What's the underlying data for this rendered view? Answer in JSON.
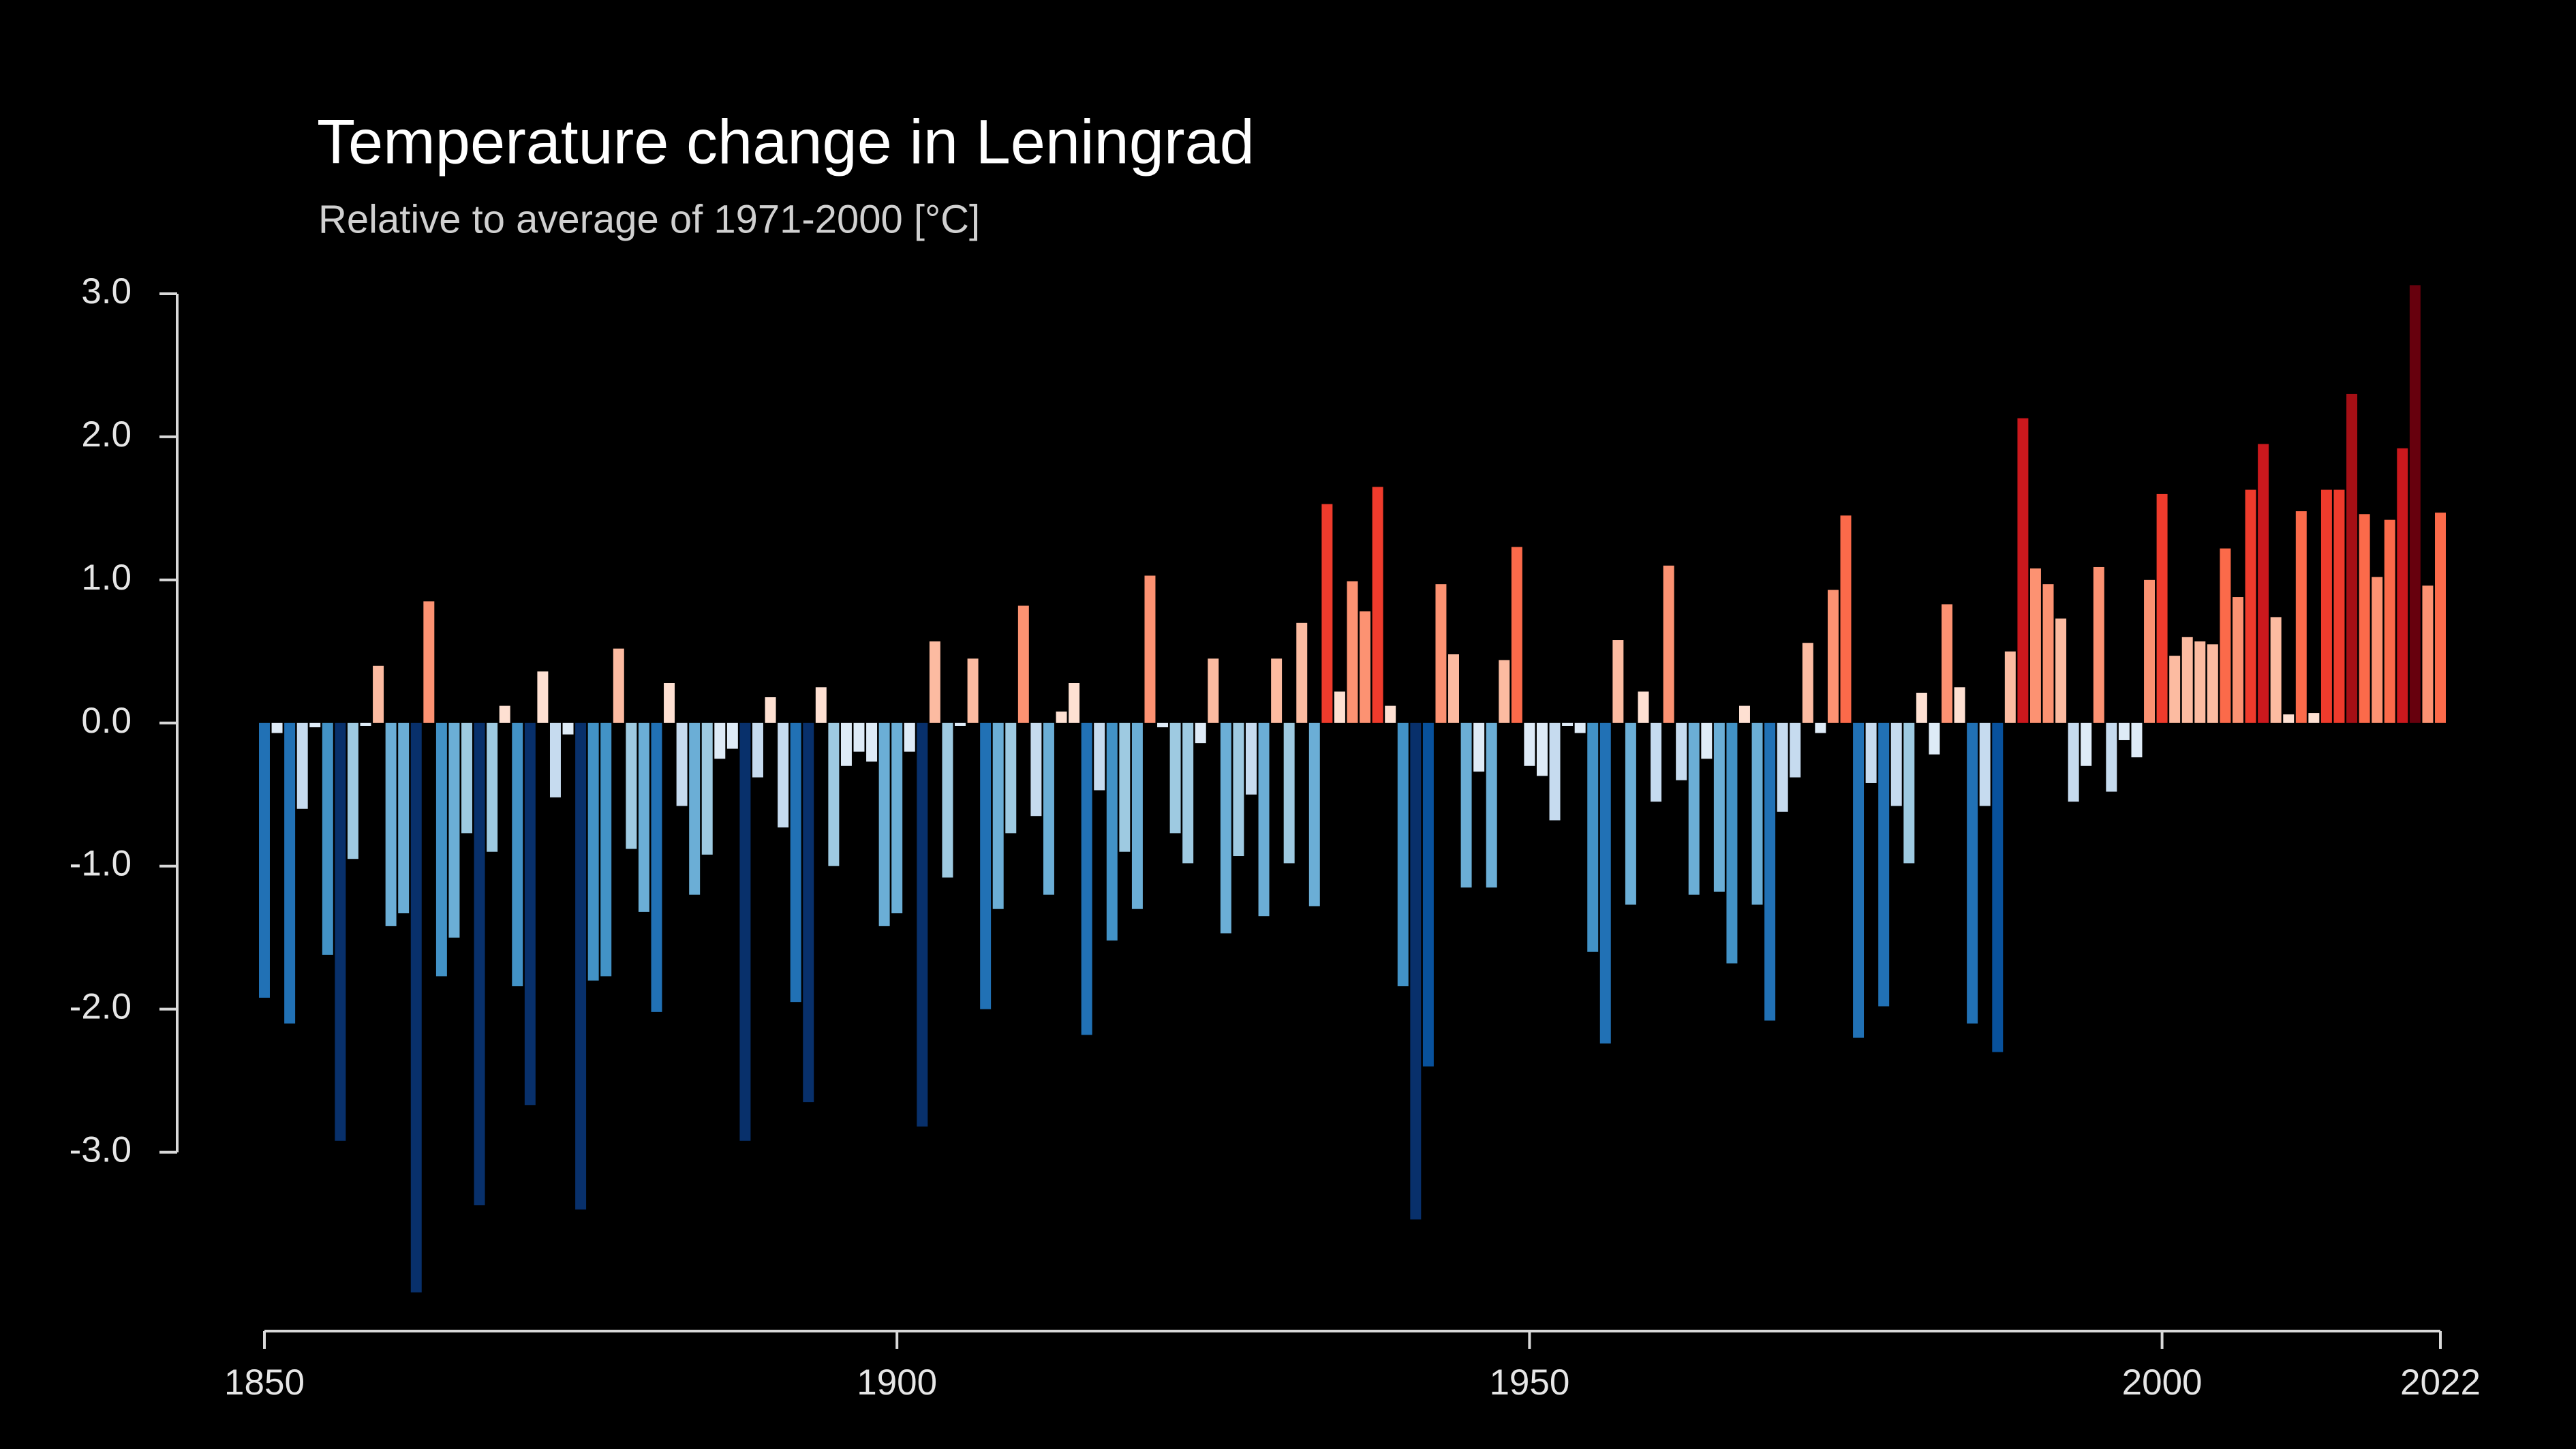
{
  "chart_data": {
    "type": "bar",
    "title": "Temperature change in Leningrad",
    "subtitle": "Relative to average of 1971-2000  [°C]",
    "x": [
      1850,
      1851,
      1852,
      1853,
      1854,
      1855,
      1856,
      1857,
      1858,
      1859,
      1860,
      1861,
      1862,
      1863,
      1864,
      1865,
      1866,
      1867,
      1868,
      1869,
      1870,
      1871,
      1872,
      1873,
      1874,
      1875,
      1876,
      1877,
      1878,
      1879,
      1880,
      1881,
      1882,
      1883,
      1884,
      1885,
      1886,
      1887,
      1888,
      1889,
      1890,
      1891,
      1892,
      1893,
      1894,
      1895,
      1896,
      1897,
      1898,
      1899,
      1900,
      1901,
      1902,
      1903,
      1904,
      1905,
      1906,
      1907,
      1908,
      1909,
      1910,
      1911,
      1912,
      1913,
      1914,
      1915,
      1916,
      1917,
      1918,
      1919,
      1920,
      1921,
      1922,
      1923,
      1924,
      1925,
      1926,
      1927,
      1928,
      1929,
      1930,
      1931,
      1932,
      1933,
      1934,
      1935,
      1936,
      1937,
      1938,
      1939,
      1940,
      1941,
      1942,
      1943,
      1944,
      1945,
      1946,
      1947,
      1948,
      1949,
      1950,
      1951,
      1952,
      1953,
      1954,
      1955,
      1956,
      1957,
      1958,
      1959,
      1960,
      1961,
      1962,
      1963,
      1964,
      1965,
      1966,
      1967,
      1968,
      1969,
      1970,
      1971,
      1972,
      1973,
      1974,
      1975,
      1976,
      1977,
      1978,
      1979,
      1980,
      1981,
      1982,
      1983,
      1984,
      1985,
      1986,
      1987,
      1988,
      1989,
      1990,
      1991,
      1992,
      1993,
      1994,
      1995,
      1996,
      1997,
      1998,
      1999,
      2000,
      2001,
      2002,
      2003,
      2004,
      2005,
      2006,
      2007,
      2008,
      2009,
      2010,
      2011,
      2012,
      2013,
      2014,
      2015,
      2016,
      2017,
      2018,
      2019,
      2020,
      2021,
      2022
    ],
    "values": [
      -1.92,
      -0.07,
      -2.1,
      -0.6,
      -0.03,
      -1.62,
      -2.92,
      -0.95,
      -0.02,
      0.4,
      -1.42,
      -1.33,
      -3.98,
      0.85,
      -1.77,
      -1.5,
      -0.77,
      -3.37,
      -0.9,
      0.12,
      -1.84,
      -2.67,
      0.36,
      -0.52,
      -0.08,
      -3.4,
      -1.8,
      -1.77,
      0.52,
      -0.88,
      -1.32,
      -2.02,
      0.28,
      -0.58,
      -1.2,
      -0.92,
      -0.25,
      -0.18,
      -2.92,
      -0.38,
      0.18,
      -0.73,
      -1.95,
      -2.65,
      0.25,
      -1.0,
      -0.3,
      -0.2,
      -0.27,
      -1.42,
      -1.33,
      -0.2,
      -2.82,
      0.57,
      -1.08,
      -0.02,
      0.45,
      -2.0,
      -1.3,
      -0.77,
      0.82,
      -0.65,
      -1.2,
      0.08,
      0.28,
      -2.18,
      -0.47,
      -1.52,
      -0.9,
      -1.3,
      1.03,
      -0.03,
      -0.77,
      -0.98,
      -0.14,
      0.45,
      -1.47,
      -0.93,
      -0.5,
      -1.35,
      0.45,
      -0.98,
      0.7,
      -1.28,
      1.53,
      0.22,
      0.99,
      0.78,
      1.65,
      0.12,
      -1.84,
      -3.47,
      -2.4,
      0.97,
      0.48,
      -1.15,
      -0.34,
      -1.15,
      0.44,
      1.23,
      -0.3,
      -0.37,
      -0.68,
      -0.02,
      -0.07,
      -1.6,
      -2.24,
      0.58,
      -1.27,
      0.22,
      -0.55,
      1.1,
      -0.4,
      -1.2,
      -0.25,
      -1.18,
      -1.68,
      0.12,
      -1.27,
      -2.08,
      -0.62,
      -0.38,
      0.56,
      -0.07,
      0.93,
      1.45,
      -2.2,
      -0.42,
      -1.98,
      -0.58,
      -0.98,
      0.21,
      -0.22,
      0.83,
      0.25,
      -2.1,
      -0.58,
      -2.3,
      0.5,
      2.13,
      1.08,
      0.97,
      0.73,
      -0.55,
      -0.3,
      1.09,
      -0.48,
      -0.12,
      -0.24,
      1.0,
      1.6,
      0.47,
      0.6,
      0.57,
      0.55,
      1.22,
      0.88,
      1.63,
      1.95,
      0.74,
      0.06,
      1.48,
      0.07,
      1.63,
      1.63,
      2.3,
      1.46,
      1.02,
      1.42,
      1.92,
      3.06,
      0.96,
      1.47
    ],
    "palette": [
      "#08306b",
      "#08519c",
      "#2171b5",
      "#4292c6",
      "#6baed6",
      "#9ecae1",
      "#c6dbef",
      "#deebf7",
      "#fee0d2",
      "#fcbba1",
      "#fc9272",
      "#fb6a4a",
      "#ef3b2c",
      "#cb181d",
      "#a50f15",
      "#67000d"
    ],
    "clim": [
      -3,
      3
    ],
    "xlim": [
      1850,
      2022
    ],
    "xticks": [
      1850,
      1900,
      1950,
      2000,
      2022
    ],
    "ylim": [
      -4.25,
      3.2
    ],
    "yticks": [
      {
        "value": 3,
        "label": "3.0"
      },
      {
        "value": 2,
        "label": "2.0"
      },
      {
        "value": 1,
        "label": "1.0"
      },
      {
        "value": 0,
        "label": "0.0"
      },
      {
        "value": -1,
        "label": "-1.0"
      },
      {
        "value": -2,
        "label": "-2.0"
      },
      {
        "value": -3,
        "label": "-3.0"
      }
    ]
  }
}
